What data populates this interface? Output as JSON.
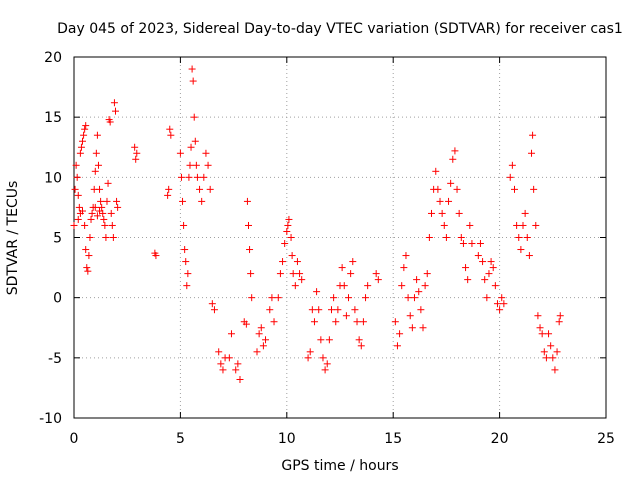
{
  "chart_data": {
    "type": "scatter",
    "title": "Day 045 of 2023, Sidereal Day-to-day VTEC variation (SDTVAR) for receiver cas1",
    "xlabel": "GPS time / hours",
    "ylabel": "SDTVAR / TECUs",
    "xlim": [
      0,
      25
    ],
    "ylim": [
      -10,
      20
    ],
    "xticks": [
      0,
      5,
      10,
      15,
      20,
      25
    ],
    "yticks": [
      -10,
      -5,
      0,
      5,
      10,
      15,
      20
    ],
    "xtick_labels": [
      "0",
      "5",
      "10",
      "15",
      "20",
      "25"
    ],
    "ytick_labels": [
      "-10",
      "-5",
      "0",
      "5",
      "10",
      "15",
      "20"
    ],
    "grid": true,
    "marker": "+",
    "series": [
      {
        "name": "SDTVAR",
        "color": "#ff0000",
        "points": [
          [
            0.0,
            6
          ],
          [
            0.05,
            9
          ],
          [
            0.1,
            11
          ],
          [
            0.15,
            10
          ],
          [
            0.2,
            8.5
          ],
          [
            0.25,
            7.5
          ],
          [
            0.3,
            12
          ],
          [
            0.35,
            12.5
          ],
          [
            0.4,
            13
          ],
          [
            0.45,
            13.5
          ],
          [
            0.5,
            14
          ],
          [
            0.55,
            14.3
          ],
          [
            0.2,
            6.5
          ],
          [
            0.3,
            7
          ],
          [
            0.4,
            7.2
          ],
          [
            0.5,
            6
          ],
          [
            0.55,
            4
          ],
          [
            0.6,
            2.5
          ],
          [
            0.65,
            2.2
          ],
          [
            0.7,
            3.5
          ],
          [
            0.75,
            5
          ],
          [
            0.8,
            6.5
          ],
          [
            0.85,
            7
          ],
          [
            0.9,
            7.5
          ],
          [
            0.95,
            9
          ],
          [
            1.0,
            10.5
          ],
          [
            1.05,
            12
          ],
          [
            1.1,
            13.5
          ],
          [
            1.15,
            11
          ],
          [
            1.2,
            9
          ],
          [
            1.25,
            8
          ],
          [
            1.3,
            7.5
          ],
          [
            1.35,
            7
          ],
          [
            1.4,
            6.5
          ],
          [
            1.45,
            6
          ],
          [
            1.5,
            5
          ],
          [
            1.55,
            8
          ],
          [
            1.6,
            9.5
          ],
          [
            1.65,
            14.8
          ],
          [
            1.7,
            14.6
          ],
          [
            1.75,
            7
          ],
          [
            1.8,
            6
          ],
          [
            1.85,
            5
          ],
          [
            1.9,
            16.2
          ],
          [
            1.95,
            15.5
          ],
          [
            2.0,
            8
          ],
          [
            2.05,
            7.5
          ],
          [
            1.0,
            7.5
          ],
          [
            1.1,
            6.8
          ],
          [
            1.2,
            7.2
          ],
          [
            2.85,
            12.5
          ],
          [
            2.9,
            11.5
          ],
          [
            2.95,
            12
          ],
          [
            3.8,
            3.7
          ],
          [
            3.85,
            3.5
          ],
          [
            4.4,
            8.5
          ],
          [
            4.45,
            9
          ],
          [
            4.5,
            14
          ],
          [
            4.55,
            13.5
          ],
          [
            5.0,
            12
          ],
          [
            5.05,
            10
          ],
          [
            5.1,
            8
          ],
          [
            5.15,
            6
          ],
          [
            5.2,
            4
          ],
          [
            5.25,
            3
          ],
          [
            5.3,
            1
          ],
          [
            5.35,
            2
          ],
          [
            5.4,
            10
          ],
          [
            5.45,
            11
          ],
          [
            5.5,
            12.5
          ],
          [
            5.55,
            19
          ],
          [
            5.6,
            18
          ],
          [
            5.65,
            15
          ],
          [
            5.7,
            13
          ],
          [
            5.75,
            11
          ],
          [
            5.8,
            10
          ],
          [
            5.9,
            9
          ],
          [
            6.0,
            8
          ],
          [
            6.1,
            10
          ],
          [
            6.2,
            12
          ],
          [
            6.3,
            11
          ],
          [
            6.4,
            9
          ],
          [
            6.5,
            -0.5
          ],
          [
            6.6,
            -1
          ],
          [
            6.8,
            -4.5
          ],
          [
            6.9,
            -5.5
          ],
          [
            7.0,
            -6
          ],
          [
            7.1,
            -5
          ],
          [
            7.3,
            -5
          ],
          [
            7.4,
            -3
          ],
          [
            7.6,
            -6
          ],
          [
            7.7,
            -5.5
          ],
          [
            7.8,
            -6.8
          ],
          [
            8.0,
            -2
          ],
          [
            8.1,
            -2.2
          ],
          [
            8.15,
            8
          ],
          [
            8.2,
            6
          ],
          [
            8.25,
            4
          ],
          [
            8.3,
            2
          ],
          [
            8.35,
            0
          ],
          [
            8.6,
            -4.5
          ],
          [
            8.7,
            -3
          ],
          [
            8.8,
            -2.5
          ],
          [
            8.9,
            -4
          ],
          [
            9.0,
            -3.5
          ],
          [
            9.2,
            -1
          ],
          [
            9.3,
            0
          ],
          [
            9.4,
            -2
          ],
          [
            9.6,
            0
          ],
          [
            9.7,
            2
          ],
          [
            9.8,
            3
          ],
          [
            9.9,
            4.5
          ],
          [
            10.0,
            5.5
          ],
          [
            10.05,
            6
          ],
          [
            10.1,
            6.5
          ],
          [
            10.2,
            5
          ],
          [
            10.25,
            3.5
          ],
          [
            10.3,
            2
          ],
          [
            10.4,
            1
          ],
          [
            10.5,
            3
          ],
          [
            10.6,
            2
          ],
          [
            10.7,
            1.5
          ],
          [
            11.0,
            -5
          ],
          [
            11.1,
            -4.5
          ],
          [
            11.2,
            -1
          ],
          [
            11.3,
            -2
          ],
          [
            11.4,
            0.5
          ],
          [
            11.5,
            -1
          ],
          [
            11.6,
            -3.5
          ],
          [
            11.7,
            -5
          ],
          [
            11.8,
            -6
          ],
          [
            11.9,
            -5.5
          ],
          [
            12.0,
            -3.5
          ],
          [
            12.1,
            -1
          ],
          [
            12.2,
            0
          ],
          [
            12.3,
            -2
          ],
          [
            12.4,
            -1
          ],
          [
            12.5,
            1
          ],
          [
            12.6,
            2.5
          ],
          [
            12.7,
            1
          ],
          [
            12.8,
            -1.5
          ],
          [
            12.9,
            0
          ],
          [
            13.0,
            2
          ],
          [
            13.1,
            3
          ],
          [
            13.2,
            -1
          ],
          [
            13.3,
            -2
          ],
          [
            13.4,
            -3.5
          ],
          [
            13.5,
            -4
          ],
          [
            13.6,
            -2
          ],
          [
            13.7,
            0
          ],
          [
            13.8,
            1
          ],
          [
            14.2,
            2
          ],
          [
            14.3,
            1.5
          ],
          [
            15.1,
            -2
          ],
          [
            15.2,
            -4
          ],
          [
            15.3,
            -3
          ],
          [
            15.4,
            1
          ],
          [
            15.5,
            2.5
          ],
          [
            15.6,
            3.5
          ],
          [
            15.7,
            0
          ],
          [
            15.8,
            -1.5
          ],
          [
            15.9,
            -2.5
          ],
          [
            16.0,
            0
          ],
          [
            16.1,
            1.5
          ],
          [
            16.2,
            0.5
          ],
          [
            16.3,
            -1
          ],
          [
            16.4,
            -2.5
          ],
          [
            16.5,
            1
          ],
          [
            16.6,
            2
          ],
          [
            16.7,
            5
          ],
          [
            16.8,
            7
          ],
          [
            16.9,
            9
          ],
          [
            17.0,
            10.5
          ],
          [
            17.1,
            9
          ],
          [
            17.2,
            8
          ],
          [
            17.3,
            7
          ],
          [
            17.4,
            6
          ],
          [
            17.5,
            5
          ],
          [
            17.6,
            8
          ],
          [
            17.7,
            9.5
          ],
          [
            17.8,
            11.5
          ],
          [
            17.9,
            12.2
          ],
          [
            18.0,
            9
          ],
          [
            18.1,
            7
          ],
          [
            18.2,
            5
          ],
          [
            18.3,
            4.5
          ],
          [
            18.4,
            2.5
          ],
          [
            18.5,
            1.5
          ],
          [
            18.6,
            6
          ],
          [
            18.7,
            4.5
          ],
          [
            19.0,
            3.5
          ],
          [
            19.1,
            4.5
          ],
          [
            19.2,
            3
          ],
          [
            19.3,
            1.5
          ],
          [
            19.4,
            0
          ],
          [
            19.5,
            2
          ],
          [
            19.6,
            3
          ],
          [
            19.7,
            2.5
          ],
          [
            19.8,
            1
          ],
          [
            19.9,
            -0.5
          ],
          [
            20.0,
            -1
          ],
          [
            20.1,
            0
          ],
          [
            20.2,
            -0.5
          ],
          [
            20.5,
            10
          ],
          [
            20.6,
            11
          ],
          [
            20.7,
            9
          ],
          [
            20.8,
            6
          ],
          [
            20.9,
            5
          ],
          [
            21.0,
            4
          ],
          [
            21.1,
            6
          ],
          [
            21.2,
            7
          ],
          [
            21.3,
            5
          ],
          [
            21.4,
            3.5
          ],
          [
            21.5,
            12
          ],
          [
            21.55,
            13.5
          ],
          [
            21.6,
            9
          ],
          [
            21.7,
            6
          ],
          [
            21.8,
            -1.5
          ],
          [
            21.9,
            -2.5
          ],
          [
            22.0,
            -3
          ],
          [
            22.1,
            -4.5
          ],
          [
            22.2,
            -5
          ],
          [
            22.3,
            -3
          ],
          [
            22.4,
            -4
          ],
          [
            22.5,
            -5
          ],
          [
            22.6,
            -6
          ],
          [
            22.7,
            -4.5
          ],
          [
            22.8,
            -2
          ],
          [
            22.85,
            -1.5
          ]
        ]
      }
    ]
  }
}
